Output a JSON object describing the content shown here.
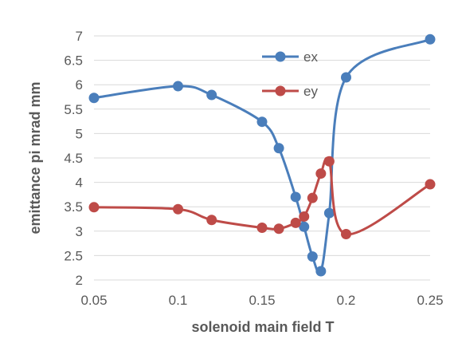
{
  "chart_data": {
    "type": "line",
    "title": "",
    "xlabel": "solenoid main field T",
    "ylabel": "emittance pi mrad mm",
    "xlim": [
      0.05,
      0.25
    ],
    "ylim": [
      2,
      7
    ],
    "xticks": [
      "0.05",
      "0.1",
      "0.15",
      "0.2",
      "0.25"
    ],
    "yticks": [
      "2",
      "2.5",
      "3",
      "3.5",
      "4",
      "4.5",
      "5",
      "5.5",
      "6",
      "6.5",
      "7"
    ],
    "grid": "horizontal",
    "legend_position": "top-right",
    "series": [
      {
        "name": "ex",
        "color": "#4a7ebb",
        "x": [
          0.05,
          0.1,
          0.12,
          0.15,
          0.16,
          0.17,
          0.175,
          0.18,
          0.185,
          0.19,
          0.2,
          0.25
        ],
        "y": [
          5.73,
          5.97,
          5.79,
          5.24,
          4.7,
          3.7,
          3.09,
          2.48,
          2.18,
          3.37,
          6.15,
          6.93
        ]
      },
      {
        "name": "ey",
        "color": "#be4b48",
        "x": [
          0.05,
          0.1,
          0.12,
          0.15,
          0.16,
          0.17,
          0.175,
          0.18,
          0.185,
          0.19,
          0.2,
          0.25
        ],
        "y": [
          3.49,
          3.45,
          3.23,
          3.07,
          3.05,
          3.17,
          3.3,
          3.68,
          4.18,
          4.43,
          2.94,
          3.96
        ]
      }
    ]
  }
}
